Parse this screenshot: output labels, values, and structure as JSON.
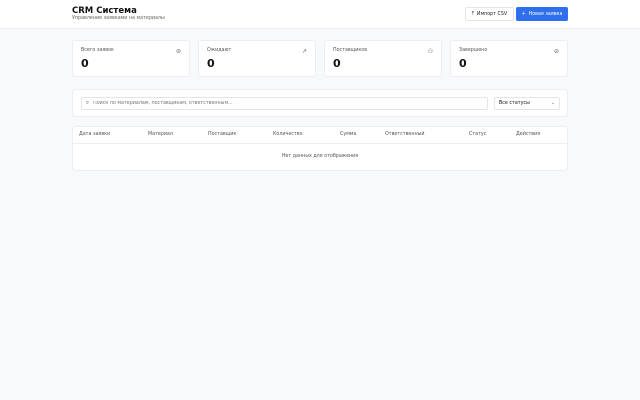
{
  "header": {
    "title": "CRM Система",
    "subtitle": "Управление заявками на материалы",
    "import_label": "Импорт CSV",
    "new_label": "Новая заявка",
    "accent": "#2f6fed"
  },
  "stats": [
    {
      "label": "Всего заявок",
      "value": "0",
      "icon": "package-icon"
    },
    {
      "label": "Ожидают",
      "value": "0",
      "icon": "trending-up-icon"
    },
    {
      "label": "Поставщиков",
      "value": "0",
      "icon": "users-icon"
    },
    {
      "label": "Завершено",
      "value": "0",
      "icon": "check-circle-icon"
    }
  ],
  "filters": {
    "search_placeholder": "Поиск по материалам, поставщикам, ответственным...",
    "status_value": "Все статусы"
  },
  "table": {
    "columns": [
      "Дата заявки",
      "Материал",
      "Поставщик",
      "Количество",
      "Сумма",
      "Ответственный",
      "Статус",
      "Действия"
    ],
    "empty_text": "Нет данных для отображения"
  }
}
